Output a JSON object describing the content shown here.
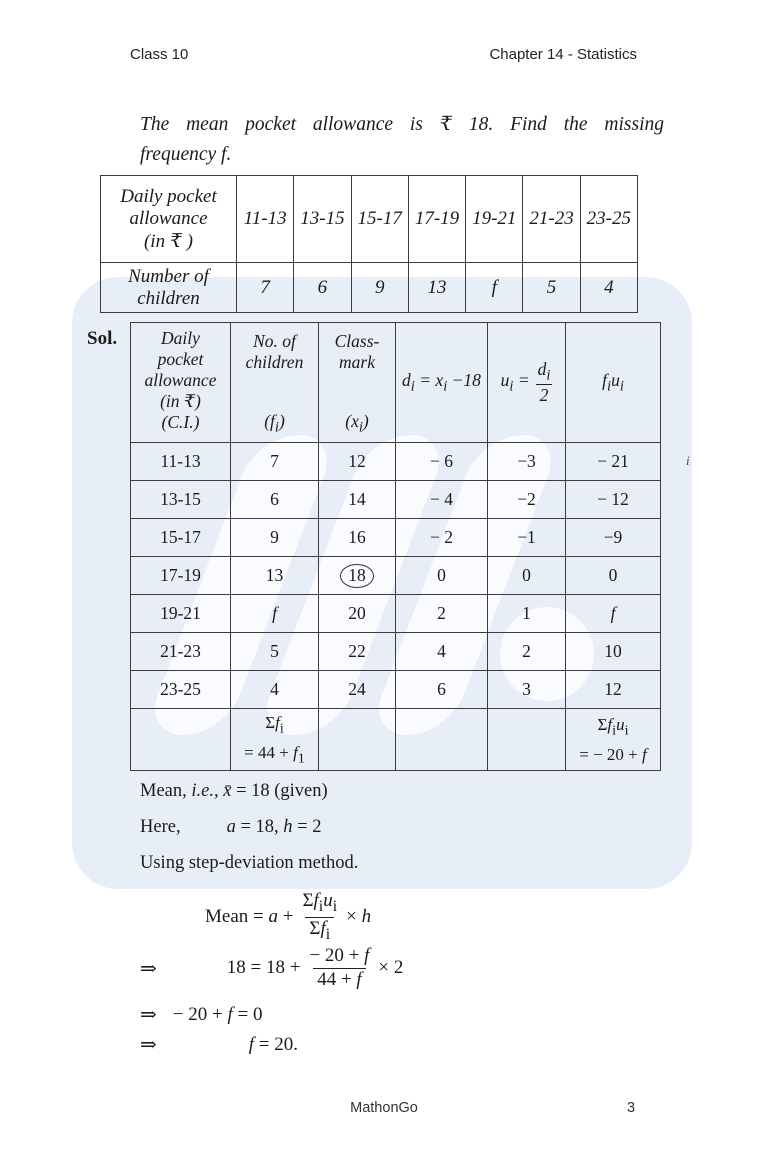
{
  "page": {
    "header_left": "Class 10",
    "header_right": "Chapter 14 - Statistics",
    "footer_brand": "MathonGo",
    "footer_page": "3"
  },
  "problem": {
    "line1": "The mean pocket allowance is ₹ 18. Find the missing",
    "line2": "frequency f."
  },
  "sol_label": "Sol.",
  "colors": {
    "panel_blue": "#e7eef8",
    "table_border": "#3c3c3c"
  },
  "table1": {
    "corner": "Daily pocket\nallowance\n(in ₹ )",
    "intervals": [
      "11-13",
      "13-15",
      "15-17",
      "17-19",
      "19-21",
      "21-23",
      "23-25"
    ],
    "row2_label": "Number of\nchildren",
    "values": [
      "7",
      "6",
      "9",
      "13",
      "f",
      "5",
      "4"
    ]
  },
  "table2": {
    "header": {
      "ci": "Daily\npocket\nallowance\n(in ₹)\n(C.I.)",
      "fi_top": "No. of\nchildren",
      "fi_bottom": "(f_{i})",
      "xi_top": "Class-\nmark",
      "xi_bottom": "(x_{i})",
      "di": "d_{i} = x_{i} −18",
      "ui_pre": "u_{i} =",
      "ui_num": "d_{i}",
      "ui_den": "2",
      "fiui": "f_{i}u_{i}"
    },
    "rows": [
      {
        "ci": "11-13",
        "fi": "7",
        "xi": "12",
        "di": "− 6",
        "ui": "−3",
        "fiui": "− 21",
        "circled": false
      },
      {
        "ci": "13-15",
        "fi": "6",
        "xi": "14",
        "di": "− 4",
        "ui": "−2",
        "fiui": "− 12",
        "circled": false
      },
      {
        "ci": "15-17",
        "fi": "9",
        "xi": "16",
        "di": "− 2",
        "ui": "−1",
        "fiui": "−9",
        "circled": false
      },
      {
        "ci": "17-19",
        "fi": "13",
        "xi": "18",
        "di": "0",
        "ui": "0",
        "fiui": "0",
        "circled": true
      },
      {
        "ci": "19-21",
        "fi": "*f*",
        "xi": "20",
        "di": "2",
        "ui": "1",
        "fiui": "*f*",
        "circled": false
      },
      {
        "ci": "21-23",
        "fi": "5",
        "xi": "22",
        "di": "4",
        "ui": "2",
        "fiui": "10",
        "circled": false
      },
      {
        "ci": "23-25",
        "fi": "4",
        "xi": "24",
        "di": "6",
        "ui": "3",
        "fiui": "12",
        "circled": false
      }
    ],
    "totals": {
      "fi": "Σ*f*_{i}\n= 44 + *f*_{1}",
      "fiui": "Σ*f*_{i}*u*_{i}\n= − 20 + *f*"
    }
  },
  "notes": {
    "mean_line": "Mean, *i.e.,*  *x̄*  = 18 (given)",
    "here_label": "Here,",
    "here_body": "*a* = 18, *h* = 2",
    "using_line": "Using step-deviation method."
  },
  "equations": {
    "eq1": {
      "lhs": "Mean = *a* +",
      "num": "Σ*f*_{i}*u*_{i}",
      "den": "Σ*f*_{i}",
      "rhs": "× *h*"
    },
    "eq2": {
      "arrow": "⇒",
      "lhs": "18 = 18 +",
      "num": "− 20 + *f*",
      "den": "44 + *f*",
      "rhs": "× 2"
    },
    "eq3": {
      "arrow": "⇒",
      "body": "− 20 + *f* = 0"
    },
    "eq4": {
      "arrow": "⇒",
      "body": "*f* = 20."
    }
  },
  "stray_glyph": "i"
}
